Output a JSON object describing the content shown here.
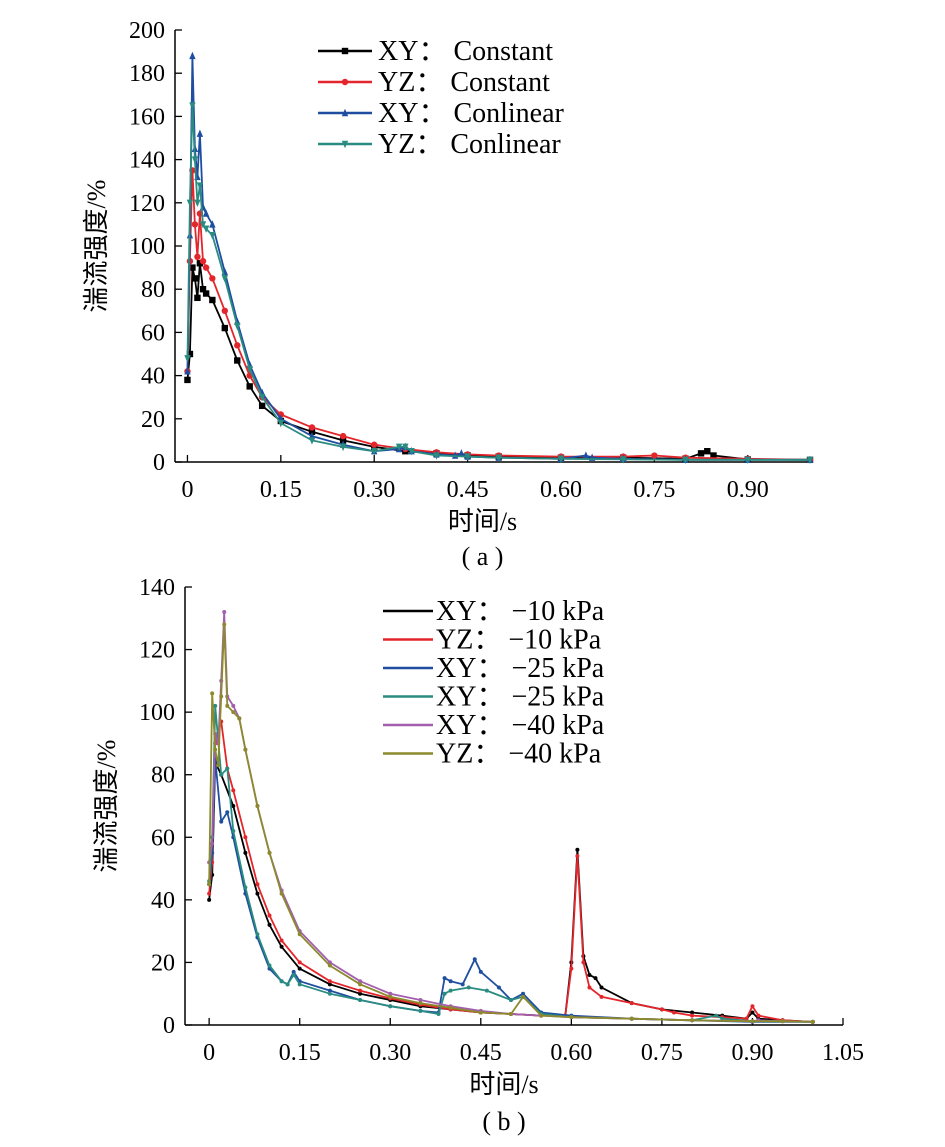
{
  "chart_data": [
    {
      "type": "line",
      "panel_label": "( a )",
      "xlabel": "时间/s",
      "ylabel": "湍流强度/%",
      "xlim": [
        -0.02,
        1.0
      ],
      "ylim": [
        0,
        200
      ],
      "xticks": [
        0,
        0.15,
        0.3,
        0.45,
        0.6,
        0.75,
        0.9
      ],
      "xtick_labels": [
        "0",
        "0.15",
        "0.30",
        "0.45",
        "0.60",
        "0.75",
        "0.90"
      ],
      "yticks": [
        0,
        20,
        40,
        60,
        80,
        100,
        120,
        140,
        160,
        180,
        200
      ],
      "ytick_labels": [
        "0",
        "20",
        "40",
        "60",
        "80",
        "100",
        "120",
        "140",
        "160",
        "180",
        "200"
      ],
      "legend_position": "top-center",
      "grid": false,
      "series": [
        {
          "name": "XY：  Constant",
          "color": "#000000",
          "marker": "square",
          "x": [
            0,
            0.004,
            0.008,
            0.012,
            0.016,
            0.02,
            0.025,
            0.03,
            0.04,
            0.06,
            0.08,
            0.1,
            0.12,
            0.15,
            0.2,
            0.25,
            0.3,
            0.35,
            0.4,
            0.45,
            0.5,
            0.6,
            0.7,
            0.8,
            0.825,
            0.835,
            0.845,
            0.9,
            1.0
          ],
          "values": [
            38,
            50,
            90,
            85,
            76,
            92,
            80,
            78,
            75,
            62,
            47,
            35,
            26,
            19,
            14,
            10,
            7,
            5,
            4,
            3,
            2.5,
            2,
            2,
            1.5,
            4,
            5,
            3,
            1.2,
            1
          ]
        },
        {
          "name": "YZ：  Constant",
          "color": "#e3262b",
          "marker": "circle",
          "x": [
            0,
            0.004,
            0.008,
            0.012,
            0.016,
            0.02,
            0.025,
            0.03,
            0.04,
            0.06,
            0.08,
            0.1,
            0.12,
            0.15,
            0.2,
            0.25,
            0.3,
            0.35,
            0.4,
            0.45,
            0.5,
            0.6,
            0.7,
            0.75,
            0.8,
            0.9,
            1.0
          ],
          "values": [
            42,
            93,
            135,
            110,
            95,
            115,
            93,
            90,
            85,
            70,
            54,
            40,
            30,
            22,
            16,
            12,
            8,
            6,
            4.5,
            3.5,
            3,
            2.5,
            2.5,
            3,
            2,
            1.5,
            1
          ]
        },
        {
          "name": "XY：  Conlinear",
          "color": "#1f4ea1",
          "marker": "triangle-up",
          "x": [
            0,
            0.004,
            0.008,
            0.012,
            0.016,
            0.02,
            0.025,
            0.03,
            0.04,
            0.06,
            0.08,
            0.1,
            0.12,
            0.15,
            0.2,
            0.25,
            0.3,
            0.34,
            0.35,
            0.36,
            0.4,
            0.43,
            0.44,
            0.45,
            0.5,
            0.6,
            0.64,
            0.65,
            0.7,
            0.8,
            0.9,
            1.0
          ],
          "values": [
            42,
            105,
            188,
            145,
            132,
            152,
            118,
            115,
            110,
            88,
            65,
            45,
            32,
            20,
            12,
            8,
            5,
            6,
            7,
            5,
            3.5,
            3,
            4,
            2.5,
            2,
            1.5,
            3,
            2,
            1.5,
            1,
            1,
            1
          ]
        },
        {
          "name": "YZ：  Conlinear",
          "color": "#2a8c80",
          "marker": "triangle-down",
          "x": [
            0,
            0.004,
            0.008,
            0.012,
            0.016,
            0.02,
            0.025,
            0.03,
            0.04,
            0.06,
            0.08,
            0.1,
            0.12,
            0.15,
            0.2,
            0.25,
            0.3,
            0.34,
            0.35,
            0.36,
            0.4,
            0.45,
            0.5,
            0.6,
            0.7,
            0.8,
            0.9,
            1.0
          ],
          "values": [
            48,
            120,
            165,
            140,
            120,
            128,
            110,
            108,
            105,
            85,
            63,
            43,
            30,
            18,
            10,
            7,
            5,
            7,
            7,
            5,
            3,
            2.5,
            2,
            1.5,
            1.2,
            1,
            1,
            1
          ]
        }
      ]
    },
    {
      "type": "line",
      "panel_label": "( b )",
      "xlabel": "时间/s",
      "ylabel": "湍流强度/%",
      "xlim": [
        -0.04,
        1.05
      ],
      "ylim": [
        0,
        140
      ],
      "xticks": [
        0,
        0.15,
        0.3,
        0.45,
        0.6,
        0.75,
        0.9,
        1.05
      ],
      "xtick_labels": [
        "0",
        "0.15",
        "0.30",
        "0.45",
        "0.60",
        "0.75",
        "0.90",
        "1.05"
      ],
      "yticks": [
        0,
        20,
        40,
        60,
        80,
        100,
        120,
        140
      ],
      "ytick_labels": [
        "0",
        "20",
        "40",
        "60",
        "80",
        "100",
        "120",
        "140"
      ],
      "legend_position": "top-center",
      "grid": false,
      "series": [
        {
          "name": "XY：  −10  kPa",
          "color": "#000000",
          "x": [
            0,
            0.005,
            0.01,
            0.02,
            0.04,
            0.06,
            0.08,
            0.1,
            0.12,
            0.15,
            0.2,
            0.25,
            0.3,
            0.35,
            0.4,
            0.45,
            0.5,
            0.55,
            0.59,
            0.6,
            0.61,
            0.62,
            0.63,
            0.64,
            0.65,
            0.7,
            0.75,
            0.8,
            0.85,
            0.89,
            0.9,
            0.91,
            0.95,
            1.0
          ],
          "values": [
            40,
            48,
            84,
            80,
            70,
            55,
            42,
            32,
            25,
            18,
            13,
            10,
            8,
            6,
            5,
            4,
            3.5,
            3,
            3,
            20,
            56,
            22,
            16,
            15,
            12,
            7,
            5,
            4,
            3,
            2,
            4,
            2,
            1.5,
            1
          ]
        },
        {
          "name": "YZ：  −10  kPa",
          "color": "#e3262b",
          "x": [
            0,
            0.005,
            0.01,
            0.02,
            0.03,
            0.04,
            0.06,
            0.08,
            0.1,
            0.12,
            0.15,
            0.2,
            0.25,
            0.3,
            0.35,
            0.4,
            0.45,
            0.5,
            0.55,
            0.59,
            0.6,
            0.61,
            0.62,
            0.63,
            0.65,
            0.7,
            0.75,
            0.77,
            0.8,
            0.85,
            0.89,
            0.9,
            0.91,
            0.95,
            1.0
          ],
          "values": [
            42,
            52,
            90,
            97,
            82,
            75,
            60,
            45,
            35,
            27,
            20,
            14,
            11,
            8.5,
            6.5,
            5,
            4,
            3.5,
            3,
            3,
            18,
            54,
            20,
            12,
            9,
            7,
            5,
            4,
            3,
            2.5,
            2,
            6,
            3,
            1.5,
            1
          ]
        },
        {
          "name": "XY：  −25  kPa",
          "color": "#1f4ea1",
          "x": [
            0,
            0.005,
            0.01,
            0.02,
            0.03,
            0.04,
            0.06,
            0.08,
            0.1,
            0.12,
            0.13,
            0.14,
            0.15,
            0.2,
            0.25,
            0.3,
            0.35,
            0.38,
            0.39,
            0.4,
            0.42,
            0.44,
            0.45,
            0.48,
            0.5,
            0.52,
            0.55,
            0.6,
            0.7,
            0.8,
            0.9,
            1.0
          ],
          "values": [
            45,
            55,
            85,
            65,
            68,
            60,
            42,
            28,
            18,
            14,
            13,
            17,
            14,
            11,
            8,
            6,
            4.5,
            4,
            15,
            14,
            13,
            21,
            17,
            12,
            8,
            10,
            4,
            3,
            2,
            1.5,
            1,
            1
          ]
        },
        {
          "name": "XY：  −25 kPa",
          "color": "#2a8c80",
          "x": [
            0,
            0.005,
            0.01,
            0.02,
            0.03,
            0.04,
            0.06,
            0.08,
            0.1,
            0.12,
            0.13,
            0.14,
            0.15,
            0.2,
            0.25,
            0.3,
            0.35,
            0.38,
            0.39,
            0.4,
            0.43,
            0.46,
            0.5,
            0.52,
            0.55,
            0.6,
            0.7,
            0.8,
            0.84,
            0.85,
            0.9,
            1.0
          ],
          "values": [
            46,
            60,
            102,
            80,
            82,
            62,
            44,
            29,
            19,
            14,
            13,
            16,
            13,
            10,
            8,
            6,
            4.5,
            3.5,
            10,
            11,
            12,
            11,
            8,
            9,
            3.5,
            2.5,
            2,
            1.5,
            3,
            2,
            1.2,
            1
          ]
        },
        {
          "name": "XY：  −40  kPa",
          "color": "#a15fae",
          "x": [
            0,
            0.005,
            0.01,
            0.015,
            0.02,
            0.025,
            0.03,
            0.04,
            0.05,
            0.06,
            0.08,
            0.1,
            0.12,
            0.15,
            0.2,
            0.25,
            0.3,
            0.35,
            0.4,
            0.45,
            0.5,
            0.55,
            0.6,
            0.7,
            0.8,
            0.9,
            0.91,
            0.95,
            1.0
          ],
          "values": [
            52,
            58,
            93,
            90,
            110,
            132,
            105,
            102,
            98,
            88,
            70,
            55,
            43,
            30,
            20,
            14,
            10,
            8,
            6,
            4.5,
            3.5,
            3,
            2.5,
            2,
            1.5,
            1.2,
            1.5,
            1.2,
            1
          ]
        },
        {
          "name": "YZ：  −40  kPa",
          "color": "#8c8a2c",
          "x": [
            0,
            0.005,
            0.01,
            0.015,
            0.02,
            0.025,
            0.03,
            0.04,
            0.05,
            0.06,
            0.08,
            0.1,
            0.12,
            0.15,
            0.2,
            0.25,
            0.3,
            0.35,
            0.4,
            0.45,
            0.5,
            0.52,
            0.55,
            0.6,
            0.7,
            0.8,
            0.9,
            0.95,
            1.0
          ],
          "values": [
            45,
            106,
            88,
            83,
            105,
            128,
            102,
            100,
            98,
            88,
            70,
            55,
            42,
            29,
            19,
            13,
            9,
            7,
            5.5,
            4,
            3.5,
            9,
            3,
            2.5,
            2,
            1.5,
            1.2,
            1.2,
            1
          ]
        }
      ]
    }
  ]
}
